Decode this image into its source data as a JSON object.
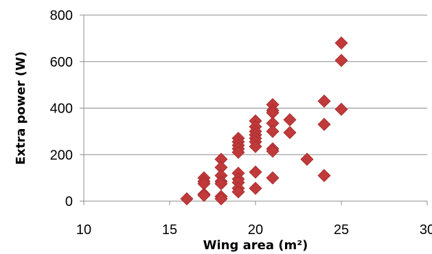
{
  "chart_data": {
    "type": "scatter",
    "title": "",
    "xlabel": "Wing area (m²)",
    "ylabel": "Extra power (W)",
    "xlim": [
      10,
      30
    ],
    "ylim": [
      0,
      800
    ],
    "x_ticks": [
      10,
      15,
      20,
      25,
      30
    ],
    "y_ticks": [
      0,
      200,
      400,
      600,
      800
    ],
    "x_tick_labels": [
      "10",
      "15",
      "20",
      "25",
      "30"
    ],
    "y_tick_labels": [
      "0",
      "200",
      "400",
      "600",
      "800"
    ],
    "grid": {
      "horizontal": true,
      "vertical": false
    },
    "legend": "none",
    "marker": "diamond",
    "marker_color": "#c0393b",
    "gridline_color": "#8c8c8c",
    "series": [
      {
        "points": [
          [
            16,
            10
          ],
          [
            17,
            100
          ],
          [
            17,
            85
          ],
          [
            17,
            75
          ],
          [
            17,
            30
          ],
          [
            17,
            25
          ],
          [
            18,
            180
          ],
          [
            18,
            145
          ],
          [
            18,
            110
          ],
          [
            18,
            85
          ],
          [
            18,
            75
          ],
          [
            18,
            20
          ],
          [
            18,
            10
          ],
          [
            19,
            270
          ],
          [
            19,
            255
          ],
          [
            19,
            240
          ],
          [
            19,
            225
          ],
          [
            19,
            210
          ],
          [
            19,
            120
          ],
          [
            19,
            95
          ],
          [
            19,
            80
          ],
          [
            19,
            55
          ],
          [
            19,
            40
          ],
          [
            20,
            345
          ],
          [
            20,
            320
          ],
          [
            20,
            300
          ],
          [
            20,
            285
          ],
          [
            20,
            270
          ],
          [
            20,
            255
          ],
          [
            20,
            235
          ],
          [
            20,
            125
          ],
          [
            20,
            55
          ],
          [
            21,
            415
          ],
          [
            21,
            390
          ],
          [
            21,
            380
          ],
          [
            21,
            335
          ],
          [
            21,
            300
          ],
          [
            21,
            225
          ],
          [
            21,
            215
          ],
          [
            21,
            100
          ],
          [
            22,
            350
          ],
          [
            22,
            295
          ],
          [
            23,
            180
          ],
          [
            24,
            430
          ],
          [
            24,
            330
          ],
          [
            24,
            110
          ],
          [
            25,
            680
          ],
          [
            25,
            605
          ],
          [
            25,
            395
          ]
        ]
      }
    ]
  }
}
